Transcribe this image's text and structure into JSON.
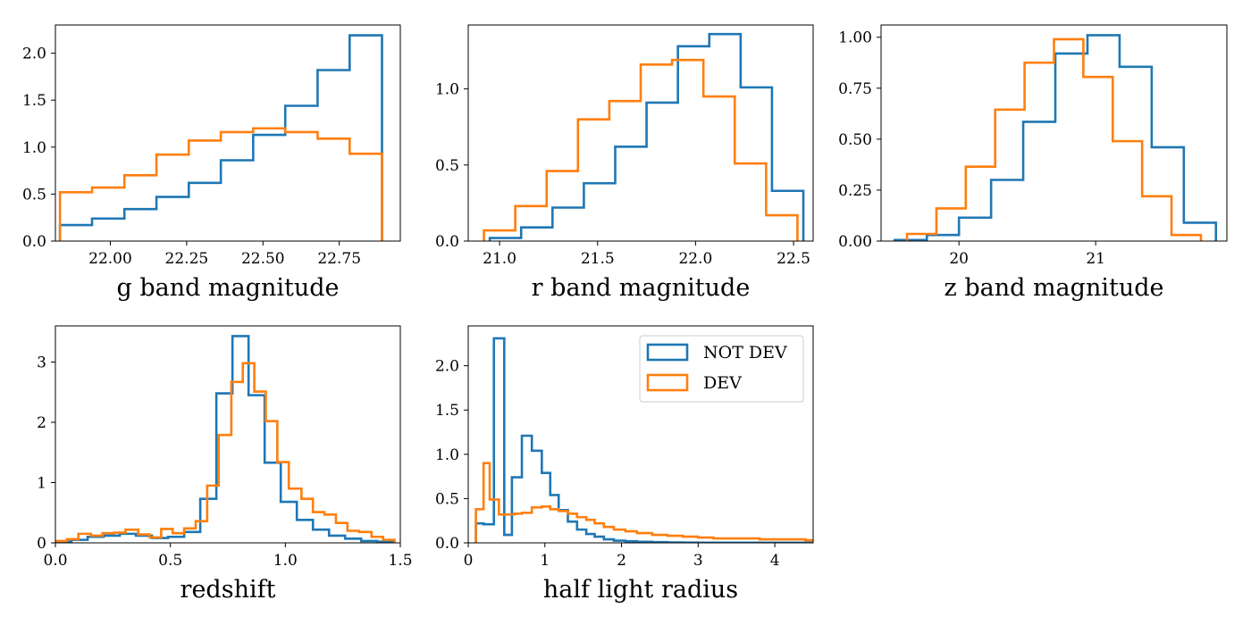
{
  "colors": {
    "not_dev": "#1f77b4",
    "dev": "#ff7f0e"
  },
  "legend": {
    "entries": [
      "NOT DEV",
      "DEV"
    ],
    "location": "upper right of half light radius panel"
  },
  "chart_data": [
    {
      "type": "histogram",
      "xlabel": "g band magnitude",
      "xlim": [
        21.82,
        22.95
      ],
      "ylim": [
        0,
        2.3
      ],
      "xticks": [
        22.0,
        22.25,
        22.5,
        22.75
      ],
      "xtick_labels": [
        "22.00",
        "22.25",
        "22.50",
        "22.75"
      ],
      "yticks": [
        0,
        0.5,
        1.0,
        1.5,
        2.0
      ],
      "ytick_labels": [
        "0.0",
        "0.5",
        "1.0",
        "1.5",
        "2.0"
      ],
      "series": [
        {
          "name": "NOT DEV",
          "color": "#1f77b4",
          "edges": [
            21.835,
            21.94,
            22.046,
            22.151,
            22.257,
            22.362,
            22.468,
            22.573,
            22.679,
            22.784,
            22.89
          ],
          "values": [
            0.17,
            0.24,
            0.34,
            0.47,
            0.62,
            0.86,
            1.13,
            1.44,
            1.82,
            2.19
          ]
        },
        {
          "name": "DEV",
          "color": "#ff7f0e",
          "edges": [
            21.835,
            21.94,
            22.046,
            22.151,
            22.257,
            22.362,
            22.468,
            22.573,
            22.679,
            22.784,
            22.89
          ],
          "values": [
            0.52,
            0.57,
            0.7,
            0.92,
            1.07,
            1.16,
            1.2,
            1.16,
            1.09,
            0.93
          ]
        }
      ]
    },
    {
      "type": "histogram",
      "xlabel": "r band magnitude",
      "xlim": [
        20.84,
        22.6
      ],
      "ylim": [
        0,
        1.42
      ],
      "xticks": [
        21.0,
        21.5,
        22.0,
        22.5
      ],
      "xtick_labels": [
        "21.0",
        "21.5",
        "22.0",
        "22.5"
      ],
      "yticks": [
        0,
        0.5,
        1.0
      ],
      "ytick_labels": [
        "0.0",
        "0.5",
        "1.0"
      ],
      "series": [
        {
          "name": "NOT DEV",
          "color": "#1f77b4",
          "edges": [
            20.95,
            21.11,
            21.27,
            21.43,
            21.59,
            21.75,
            21.91,
            22.07,
            22.23,
            22.39,
            22.55
          ],
          "values": [
            0.02,
            0.09,
            0.22,
            0.38,
            0.62,
            0.91,
            1.28,
            1.36,
            1.01,
            0.33
          ]
        },
        {
          "name": "DEV",
          "color": "#ff7f0e",
          "edges": [
            20.92,
            21.08,
            21.24,
            21.4,
            21.56,
            21.72,
            21.88,
            22.04,
            22.2,
            22.36,
            22.52
          ],
          "values": [
            0.07,
            0.23,
            0.46,
            0.8,
            0.92,
            1.16,
            1.19,
            0.95,
            0.51,
            0.17
          ]
        }
      ]
    },
    {
      "type": "histogram",
      "xlabel": "z band magnitude",
      "xlim": [
        19.43,
        21.96
      ],
      "ylim": [
        0,
        1.06
      ],
      "xticks": [
        20,
        21
      ],
      "xtick_labels": [
        "20",
        "21"
      ],
      "yticks": [
        0,
        0.25,
        0.5,
        0.75,
        1.0
      ],
      "ytick_labels": [
        "0.00",
        "0.25",
        "0.50",
        "0.75",
        "1.00"
      ],
      "series": [
        {
          "name": "NOT DEV",
          "color": "#1f77b4",
          "edges": [
            19.53,
            19.765,
            20.0,
            20.235,
            20.47,
            20.705,
            20.94,
            21.175,
            21.41,
            21.645,
            21.88
          ],
          "values": [
            0.005,
            0.03,
            0.115,
            0.3,
            0.585,
            0.92,
            1.01,
            0.855,
            0.46,
            0.09
          ]
        },
        {
          "name": "DEV",
          "color": "#ff7f0e",
          "edges": [
            19.62,
            19.835,
            20.05,
            20.265,
            20.48,
            20.695,
            20.91,
            21.125,
            21.34,
            21.555,
            21.77
          ],
          "values": [
            0.035,
            0.16,
            0.365,
            0.645,
            0.875,
            0.99,
            0.805,
            0.49,
            0.22,
            0.03
          ]
        }
      ]
    },
    {
      "type": "histogram",
      "xlabel": "redshift",
      "xlim": [
        0.0,
        1.5
      ],
      "ylim": [
        0,
        3.6
      ],
      "xticks": [
        0.0,
        0.5,
        1.0,
        1.5
      ],
      "xtick_labels": [
        "0.0",
        "0.5",
        "1.0",
        "1.5"
      ],
      "yticks": [
        0,
        1,
        2,
        3
      ],
      "ytick_labels": [
        "0",
        "1",
        "2",
        "3"
      ],
      "series": [
        {
          "name": "NOT DEV",
          "color": "#1f77b4",
          "edges": [
            0.0,
            0.07,
            0.14,
            0.21,
            0.28,
            0.35,
            0.42,
            0.49,
            0.56,
            0.63,
            0.7,
            0.77,
            0.84,
            0.91,
            0.98,
            1.05,
            1.12,
            1.19,
            1.26,
            1.33,
            1.4,
            1.47
          ],
          "values": [
            0.02,
            0.05,
            0.1,
            0.12,
            0.15,
            0.12,
            0.08,
            0.1,
            0.18,
            0.73,
            2.48,
            3.43,
            2.45,
            1.33,
            0.68,
            0.38,
            0.22,
            0.12,
            0.07,
            0.03,
            0.02
          ]
        },
        {
          "name": "DEV",
          "color": "#ff7f0e",
          "edges": [
            0.0,
            0.05,
            0.1,
            0.155,
            0.205,
            0.255,
            0.305,
            0.36,
            0.41,
            0.46,
            0.51,
            0.56,
            0.61,
            0.66,
            0.71,
            0.765,
            0.815,
            0.865,
            0.915,
            0.965,
            1.015,
            1.07,
            1.12,
            1.17,
            1.22,
            1.27,
            1.32,
            1.375,
            1.425,
            1.475
          ],
          "values": [
            0.03,
            0.06,
            0.15,
            0.12,
            0.16,
            0.17,
            0.22,
            0.14,
            0.09,
            0.23,
            0.16,
            0.24,
            0.36,
            0.95,
            1.79,
            2.67,
            2.98,
            2.51,
            2.02,
            1.34,
            0.9,
            0.73,
            0.51,
            0.47,
            0.33,
            0.2,
            0.18,
            0.1,
            0.05
          ]
        }
      ]
    },
    {
      "type": "histogram",
      "xlabel": "half light radius",
      "xlim": [
        0.0,
        4.5
      ],
      "ylim": [
        0,
        2.45
      ],
      "xticks": [
        0,
        1,
        2,
        3,
        4
      ],
      "xtick_labels": [
        "0",
        "1",
        "2",
        "3",
        "4"
      ],
      "yticks": [
        0,
        0.5,
        1.0,
        1.5,
        2.0
      ],
      "ytick_labels": [
        "0.0",
        "0.5",
        "1.0",
        "1.5",
        "2.0"
      ],
      "series": [
        {
          "name": "NOT DEV",
          "color": "#1f77b4",
          "edges": [
            0.1,
            0.2,
            0.335,
            0.47,
            0.57,
            0.7,
            0.83,
            0.96,
            1.07,
            1.18,
            1.3,
            1.42,
            1.54,
            1.65,
            1.77,
            1.9,
            2.05,
            2.2,
            2.4,
            2.6,
            2.8,
            3.0,
            4.5
          ],
          "values": [
            0.22,
            0.21,
            2.31,
            0.09,
            0.74,
            1.21,
            1.04,
            0.79,
            0.54,
            0.37,
            0.24,
            0.15,
            0.1,
            0.07,
            0.04,
            0.025,
            0.018,
            0.012,
            0.008,
            0.005,
            0.003,
            0.002
          ]
        },
        {
          "name": "DEV",
          "color": "#ff7f0e",
          "edges": [
            0.1,
            0.2,
            0.28,
            0.4,
            0.5,
            0.6,
            0.7,
            0.83,
            0.96,
            1.07,
            1.18,
            1.3,
            1.42,
            1.54,
            1.65,
            1.77,
            1.9,
            2.05,
            2.2,
            2.4,
            2.6,
            2.8,
            3.0,
            3.2,
            3.4,
            3.6,
            3.8,
            4.0,
            4.2,
            4.4,
            4.5
          ],
          "values": [
            0.38,
            0.9,
            0.49,
            0.32,
            0.32,
            0.33,
            0.34,
            0.4,
            0.41,
            0.38,
            0.36,
            0.33,
            0.29,
            0.26,
            0.22,
            0.18,
            0.15,
            0.13,
            0.11,
            0.09,
            0.08,
            0.07,
            0.06,
            0.05,
            0.05,
            0.05,
            0.04,
            0.04,
            0.04,
            0.03
          ]
        }
      ]
    }
  ]
}
